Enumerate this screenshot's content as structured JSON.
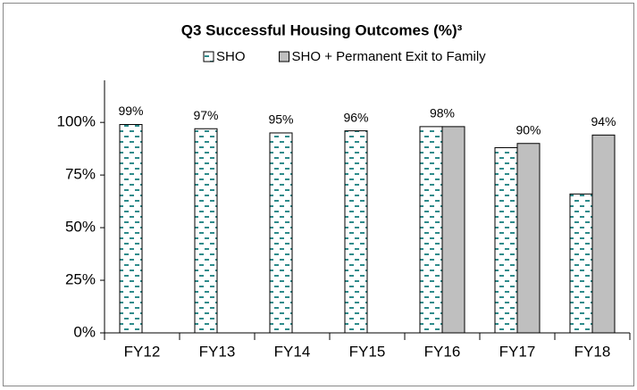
{
  "chart_data": {
    "type": "bar",
    "title": "Q3 Successful Housing Outcomes (%)³",
    "categories": [
      "FY12",
      "FY13",
      "FY14",
      "FY15",
      "FY16",
      "FY17",
      "FY18"
    ],
    "series": [
      {
        "name": "SHO",
        "color": "#2e8b8b",
        "values": [
          99,
          97,
          95,
          96,
          98,
          88,
          66
        ],
        "value_labels": [
          "99%",
          "97%",
          "95%",
          "96%",
          null,
          null,
          null
        ]
      },
      {
        "name": "SHO + Permanent Exit to Family",
        "color": "#bfbfbf",
        "values": [
          null,
          null,
          null,
          null,
          98,
          90,
          94
        ],
        "value_labels": [
          null,
          null,
          null,
          null,
          "98%",
          "90%",
          "94%"
        ]
      }
    ],
    "ylim": [
      0,
      120
    ],
    "yticks": [
      {
        "value": 0,
        "label": "0%"
      },
      {
        "value": 25,
        "label": "25%"
      },
      {
        "value": 50,
        "label": "50%"
      },
      {
        "value": 75,
        "label": "75%"
      },
      {
        "value": 100,
        "label": "100%"
      }
    ],
    "legend": "top",
    "grid": false
  }
}
